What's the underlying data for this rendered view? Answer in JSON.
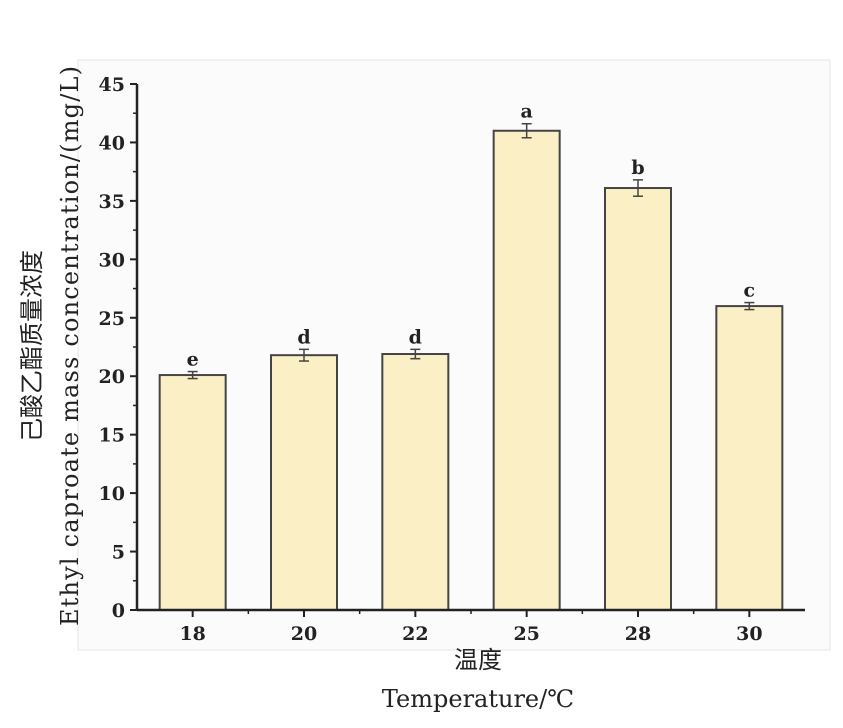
{
  "chart_data": {
    "type": "bar",
    "categories": [
      "18",
      "20",
      "22",
      "25",
      "28",
      "30"
    ],
    "values": [
      20.1,
      21.8,
      21.9,
      41.0,
      36.1,
      26.0
    ],
    "errors": [
      0.3,
      0.5,
      0.4,
      0.6,
      0.7,
      0.3
    ],
    "significance_labels": [
      "e",
      "d",
      "d",
      "a",
      "b",
      "c"
    ],
    "ylim": [
      0,
      45
    ],
    "yticks": [
      0,
      5,
      10,
      15,
      20,
      25,
      30,
      35,
      40,
      45
    ],
    "ylabel_cn": "己酸乙酯质量浓度",
    "ylabel_en": "Ethyl caproate mass concentration/(mg/L)",
    "xlabel_cn": "温度",
    "xlabel_en": "Temperature/℃",
    "bar_color": "#fbefc6",
    "bar_edge_color": "#444444",
    "grid": false
  }
}
